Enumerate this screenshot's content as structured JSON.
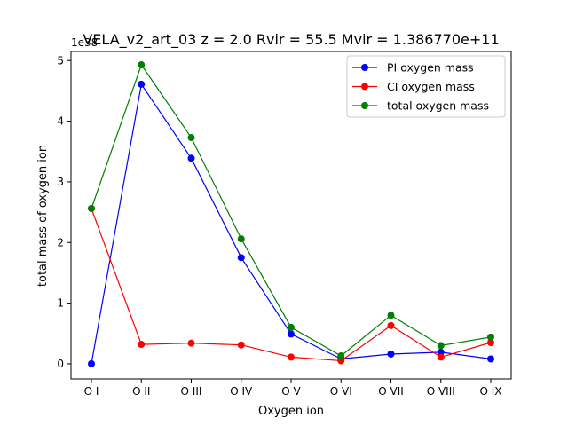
{
  "chart_data": {
    "type": "line",
    "title": "VELA_v2_art_03 z = 2.0 Rvir = 55.5 Mvir = 1.386770e+11",
    "xlabel": "Oxygen ion",
    "ylabel": "total mass of oxygen ion",
    "offset_label": "1e38",
    "categories": [
      "O I",
      "O II",
      "O III",
      "O IV",
      "O V",
      "O VI",
      "O VII",
      "O VIII",
      "O IX"
    ],
    "ylim": [
      -0.25,
      5.15
    ],
    "yticks": [
      0,
      1,
      2,
      3,
      4,
      5
    ],
    "ytick_labels": [
      "0",
      "1",
      "2",
      "3",
      "4",
      "5"
    ],
    "grid": false,
    "legend_position": "upper right",
    "series": [
      {
        "name": "PI oxygen mass",
        "color": "#0000ff",
        "values": [
          0.0,
          4.61,
          3.39,
          1.75,
          0.49,
          0.08,
          0.16,
          0.19,
          0.08
        ]
      },
      {
        "name": "CI oxygen mass",
        "color": "#ff0000",
        "values": [
          2.56,
          0.32,
          0.34,
          0.31,
          0.11,
          0.05,
          0.63,
          0.11,
          0.35
        ]
      },
      {
        "name": "total oxygen mass",
        "color": "#008000",
        "values": [
          2.56,
          4.93,
          3.73,
          2.06,
          0.6,
          0.13,
          0.8,
          0.3,
          0.44
        ]
      }
    ]
  }
}
